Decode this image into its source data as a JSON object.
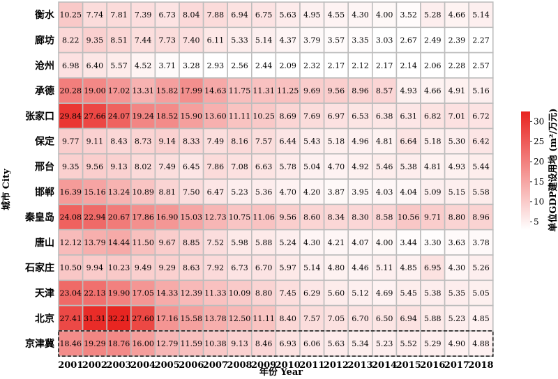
{
  "chart_data": {
    "type": "heatmap",
    "xlabel": "年份 Year",
    "ylabel": "城市 City",
    "colorbar_label": "单位GDP建设用地 (m²/万元)",
    "colorbar_ticks": [
      5,
      10,
      15,
      20,
      25,
      30
    ],
    "colorbar_range": [
      3.0,
      32.5
    ],
    "colors": {
      "low": "#ffffff",
      "high": "#e8231f",
      "grid": "#bdbdbd"
    },
    "x": [
      "2001",
      "2002",
      "2003",
      "2004",
      "2005",
      "2006",
      "2007",
      "2008",
      "2009",
      "2010",
      "2011",
      "2012",
      "2013",
      "2014",
      "2015",
      "2016",
      "2017",
      "2018"
    ],
    "y": [
      "衡水",
      "廊坊",
      "沧州",
      "承德",
      "张家口",
      "保定",
      "邢台",
      "邯郸",
      "秦皇岛",
      "唐山",
      "石家庄",
      "天津",
      "北京",
      "京津冀"
    ],
    "highlighted_row": "京津冀",
    "values": [
      [
        10.25,
        7.74,
        7.81,
        7.39,
        6.73,
        8.04,
        7.88,
        6.94,
        6.75,
        5.63,
        4.95,
        4.55,
        4.3,
        4.0,
        3.52,
        5.28,
        4.66,
        5.14
      ],
      [
        8.22,
        9.35,
        8.51,
        7.44,
        7.73,
        7.4,
        6.11,
        5.33,
        5.14,
        4.37,
        3.79,
        3.57,
        3.35,
        3.03,
        2.67,
        2.49,
        2.39,
        2.27
      ],
      [
        6.98,
        6.4,
        5.57,
        4.52,
        3.71,
        3.28,
        2.93,
        2.56,
        2.44,
        2.09,
        2.32,
        2.17,
        2.12,
        2.17,
        2.14,
        2.06,
        2.28,
        2.57
      ],
      [
        20.28,
        19.0,
        17.02,
        13.31,
        15.82,
        17.99,
        14.63,
        11.75,
        11.31,
        11.25,
        9.69,
        9.56,
        8.96,
        8.57,
        4.93,
        4.66,
        4.91,
        5.16
      ],
      [
        29.84,
        27.66,
        24.07,
        19.24,
        18.52,
        15.9,
        13.6,
        11.11,
        10.25,
        8.69,
        7.69,
        6.97,
        6.53,
        6.38,
        6.31,
        6.82,
        7.01,
        6.72
      ],
      [
        9.77,
        9.11,
        8.43,
        8.73,
        9.14,
        8.33,
        7.49,
        8.16,
        7.57,
        6.44,
        5.43,
        5.18,
        4.96,
        4.81,
        6.64,
        5.18,
        5.3,
        6.42
      ],
      [
        9.35,
        9.56,
        9.13,
        8.02,
        7.49,
        6.45,
        7.86,
        7.08,
        6.63,
        5.78,
        5.04,
        4.7,
        4.92,
        5.46,
        5.38,
        4.81,
        4.93,
        5.44
      ],
      [
        16.39,
        15.16,
        13.24,
        10.89,
        8.81,
        7.5,
        6.47,
        5.23,
        5.36,
        4.7,
        4.2,
        3.87,
        3.95,
        4.03,
        4.04,
        5.09,
        5.15,
        5.58
      ],
      [
        24.08,
        22.94,
        20.67,
        17.86,
        16.9,
        15.03,
        12.73,
        10.75,
        11.06,
        9.56,
        8.6,
        8.34,
        8.3,
        8.58,
        10.56,
        9.71,
        8.8,
        8.96
      ],
      [
        12.12,
        13.79,
        14.44,
        11.5,
        9.67,
        8.85,
        7.52,
        5.98,
        5.88,
        5.24,
        4.3,
        4.21,
        4.07,
        4.0,
        3.44,
        3.3,
        3.63,
        3.78
      ],
      [
        10.5,
        9.94,
        10.23,
        9.49,
        9.29,
        8.63,
        7.92,
        6.73,
        6.7,
        5.97,
        5.14,
        4.8,
        4.46,
        5.11,
        4.85,
        6.95,
        4.3,
        5.26
      ],
      [
        23.04,
        22.13,
        19.9,
        17.05,
        14.33,
        12.39,
        11.33,
        10.09,
        8.8,
        7.45,
        6.29,
        5.6,
        5.12,
        4.69,
        5.45,
        5.38,
        5.35,
        5.05
      ],
      [
        27.41,
        31.31,
        32.21,
        27.6,
        17.16,
        15.58,
        13.78,
        12.5,
        11.11,
        8.4,
        7.57,
        7.05,
        6.7,
        6.5,
        6.94,
        5.88,
        5.23,
        4.85
      ],
      [
        18.46,
        19.29,
        18.76,
        16.0,
        12.79,
        11.59,
        10.38,
        9.13,
        8.46,
        6.93,
        6.06,
        5.63,
        5.34,
        5.23,
        5.52,
        5.29,
        4.9,
        4.88
      ]
    ]
  }
}
